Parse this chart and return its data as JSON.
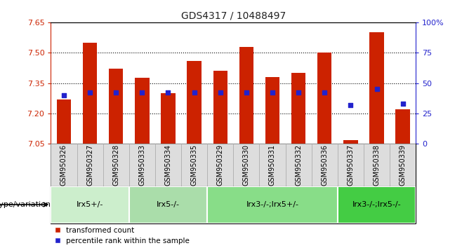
{
  "title": "GDS4317 / 10488497",
  "samples": [
    "GSM950326",
    "GSM950327",
    "GSM950328",
    "GSM950333",
    "GSM950334",
    "GSM950335",
    "GSM950329",
    "GSM950330",
    "GSM950331",
    "GSM950332",
    "GSM950336",
    "GSM950337",
    "GSM950338",
    "GSM950339"
  ],
  "bar_tops": [
    7.27,
    7.55,
    7.42,
    7.375,
    7.3,
    7.46,
    7.41,
    7.53,
    7.38,
    7.4,
    7.5,
    7.07,
    7.6,
    7.22
  ],
  "bar_base": 7.05,
  "blue_dot_pct": [
    40,
    42,
    42,
    42,
    42,
    42,
    42,
    42,
    42,
    42,
    42,
    32,
    45,
    33
  ],
  "ylim_left": [
    7.05,
    7.65
  ],
  "ylim_right": [
    0,
    100
  ],
  "yticks_left": [
    7.05,
    7.2,
    7.35,
    7.5,
    7.65
  ],
  "yticks_right": [
    0,
    25,
    50,
    75,
    100
  ],
  "hlines": [
    7.2,
    7.35,
    7.5
  ],
  "bar_color": "#cc2200",
  "dot_color": "#2222cc",
  "groups": [
    {
      "label": "Irx5+/-",
      "start": 0,
      "end": 2,
      "color": "#cceecc"
    },
    {
      "label": "Irx5-/-",
      "start": 3,
      "end": 5,
      "color": "#aaddaa"
    },
    {
      "label": "Irx3-/-;Irx5+/-",
      "start": 6,
      "end": 10,
      "color": "#88dd88"
    },
    {
      "label": "Irx3-/-;Irx5-/-",
      "start": 11,
      "end": 13,
      "color": "#44cc44"
    }
  ],
  "bar_width": 0.55,
  "left_tick_color": "#cc2200",
  "right_tick_color": "#2222cc",
  "title_fontsize": 10,
  "sample_fontsize": 7,
  "group_fontsize": 8,
  "legend_fontsize": 7.5,
  "group_label": "genotype/variation",
  "sample_box_color": "#dddddd",
  "sample_box_edge": "#aaaaaa"
}
